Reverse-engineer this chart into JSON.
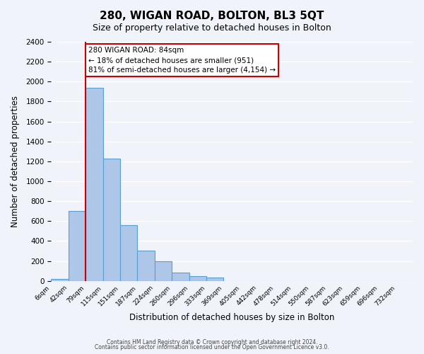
{
  "title": "280, WIGAN ROAD, BOLTON, BL3 5QT",
  "subtitle": "Size of property relative to detached houses in Bolton",
  "xlabel": "Distribution of detached houses by size in Bolton",
  "ylabel": "Number of detached properties",
  "bar_color": "#aec6e8",
  "bar_edge_color": "#5a9fd4",
  "bin_labels": [
    "6sqm",
    "42sqm",
    "79sqm",
    "115sqm",
    "151sqm",
    "187sqm",
    "224sqm",
    "260sqm",
    "296sqm",
    "333sqm",
    "369sqm",
    "405sqm",
    "442sqm",
    "478sqm",
    "514sqm",
    "550sqm",
    "587sqm",
    "623sqm",
    "659sqm",
    "696sqm",
    "732sqm"
  ],
  "bin_values": [
    20,
    700,
    1940,
    1230,
    560,
    305,
    200,
    80,
    45,
    35,
    0,
    0,
    0,
    0,
    0,
    0,
    0,
    0,
    0,
    0,
    0
  ],
  "property_line_x": 2,
  "red_line_color": "#cc0000",
  "annotation_text": "280 WIGAN ROAD: 84sqm\n← 18% of detached houses are smaller (951)\n81% of semi-detached houses are larger (4,154) →",
  "annotation_box_color": "white",
  "annotation_box_edge": "#cc0000",
  "ylim": [
    0,
    2400
  ],
  "yticks": [
    0,
    200,
    400,
    600,
    800,
    1000,
    1200,
    1400,
    1600,
    1800,
    2000,
    2200,
    2400
  ],
  "footer1": "Contains HM Land Registry data © Crown copyright and database right 2024.",
  "footer2": "Contains public sector information licensed under the Open Government Licence v3.0.",
  "background_color": "#f0f4fa",
  "grid_color": "#ffffff"
}
